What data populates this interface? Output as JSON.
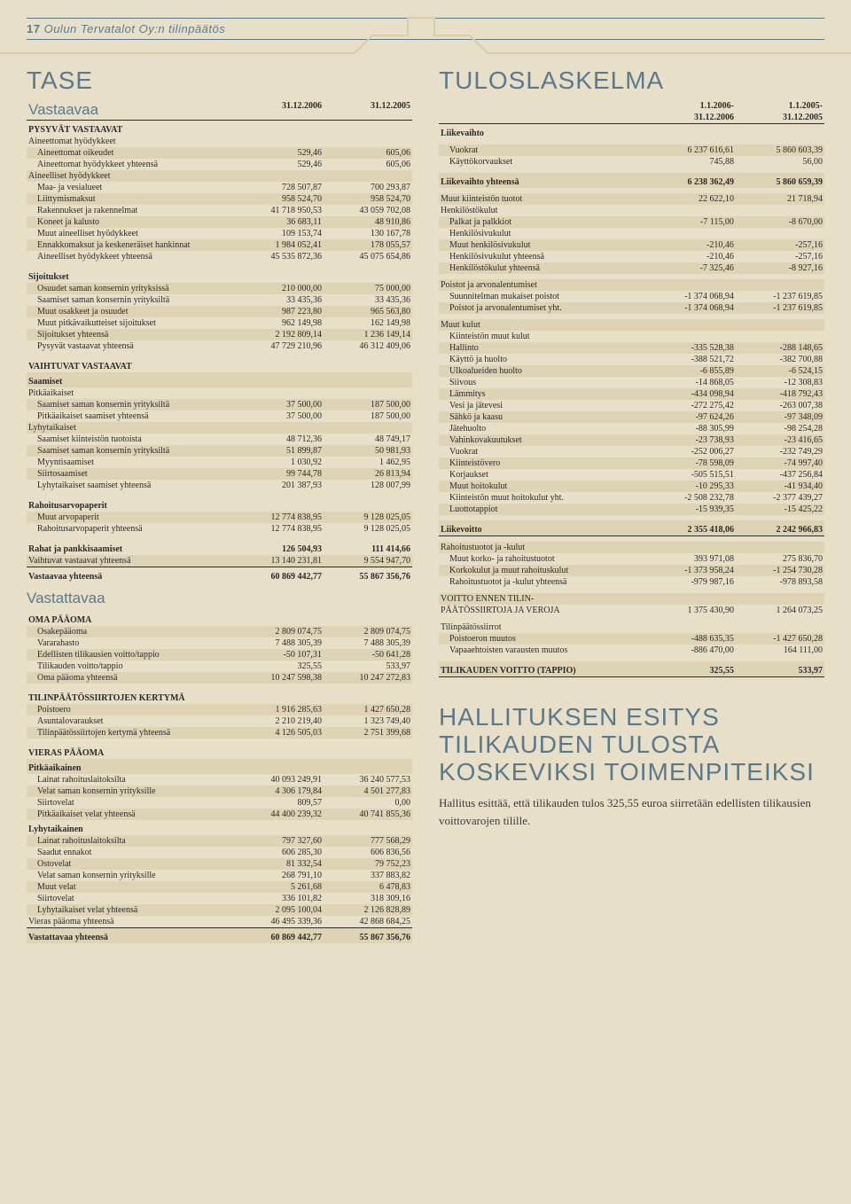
{
  "header": {
    "page_num": "17",
    "text": "Oulun Tervatalot Oy:n tilinpäätös"
  },
  "tase": {
    "title": "TASE",
    "vastaavaa_title": "Vastaavaa",
    "vastattavaa_title": "Vastattavaa",
    "date1": "31.12.2006",
    "date2": "31.12.2005",
    "rows_vastaavaa": [
      {
        "t": "section",
        "l": "PYSYVÄT VASTAAVAT"
      },
      {
        "t": "row",
        "l": "Aineettomat hyödykkeet"
      },
      {
        "t": "row",
        "band": 1,
        "indent": 1,
        "l": "Aineettomat oikeudet",
        "a": "529,46",
        "b": "605,06"
      },
      {
        "t": "row",
        "indent": 1,
        "l": "Aineettomat hyödykkeet yhteensä",
        "a": "529,46",
        "b": "605,06"
      },
      {
        "t": "row",
        "band": 1,
        "l": "Aineelliset hyödykkeet"
      },
      {
        "t": "row",
        "indent": 1,
        "l": "Maa- ja vesialueet",
        "a": "728 507,87",
        "b": "700 293,87"
      },
      {
        "t": "row",
        "band": 1,
        "indent": 1,
        "l": "Liittymismaksut",
        "a": "958 524,70",
        "b": "958 524,70"
      },
      {
        "t": "row",
        "indent": 1,
        "l": "Rakennukset ja rakennelmat",
        "a": "41 718 950,53",
        "b": "43 059 702,08"
      },
      {
        "t": "row",
        "band": 1,
        "indent": 1,
        "l": "Koneet ja kalusto",
        "a": "36 683,11",
        "b": "48 910,86"
      },
      {
        "t": "row",
        "indent": 1,
        "l": "Muut aineelliset hyödykkeet",
        "a": "109 153,74",
        "b": "130 167,78"
      },
      {
        "t": "row",
        "band": 1,
        "indent": 1,
        "l": "Ennakkomaksut ja keskeneräiset hankinnat",
        "a": "1 984 052,41",
        "b": "178 055,57"
      },
      {
        "t": "row",
        "indent": 1,
        "l": "Aineelliset hyödykkeet yhteensä",
        "a": "45 535 872,36",
        "b": "45 075 654,86"
      },
      {
        "t": "gap"
      },
      {
        "t": "section",
        "l": "Sijoitukset"
      },
      {
        "t": "row",
        "band": 1,
        "indent": 1,
        "l": "Osuudet saman konsernin yrityksissä",
        "a": "210 000,00",
        "b": "75 000,00"
      },
      {
        "t": "row",
        "indent": 1,
        "l": "Saamiset saman konsernin yrityksiltä",
        "a": "33 435,36",
        "b": "33 435,36"
      },
      {
        "t": "row",
        "band": 1,
        "indent": 1,
        "l": "Muut osakkeet ja osuudet",
        "a": "987 223,80",
        "b": "965 563,80"
      },
      {
        "t": "row",
        "indent": 1,
        "l": "Muut pitkävaikutteiset sijoitukset",
        "a": "962 149,98",
        "b": "162 149,98"
      },
      {
        "t": "row",
        "band": 1,
        "indent": 1,
        "l": "Sijoitukset yhteensä",
        "a": "2 192 809,14",
        "b": "1 236 149,14"
      },
      {
        "t": "row",
        "indent": 1,
        "l": "Pysyvät vastaavat yhteensä",
        "a": "47 729 210,96",
        "b": "46 312 409,06"
      },
      {
        "t": "gap"
      },
      {
        "t": "section",
        "l": "VAIHTUVAT VASTAAVAT"
      },
      {
        "t": "section",
        "band": 1,
        "l": "Saamiset"
      },
      {
        "t": "row",
        "l": "Pitkäaikaiset"
      },
      {
        "t": "row",
        "band": 1,
        "indent": 1,
        "l": "Saamiset saman konsernin yrityksiltä",
        "a": "37 500,00",
        "b": "187 500,00"
      },
      {
        "t": "row",
        "indent": 1,
        "l": "Pitkäaikaiset saamiset yhteensä",
        "a": "37 500,00",
        "b": "187 500,00"
      },
      {
        "t": "row",
        "band": 1,
        "l": "Lyhytaikaiset"
      },
      {
        "t": "row",
        "indent": 1,
        "l": "Saamiset kiinteistön tuotoista",
        "a": "48 712,36",
        "b": "48 749,17"
      },
      {
        "t": "row",
        "band": 1,
        "indent": 1,
        "l": "Saamiset saman konsernin yrityksiltä",
        "a": "51 899,87",
        "b": "50 981,93"
      },
      {
        "t": "row",
        "indent": 1,
        "l": "Myyntisaamiset",
        "a": "1 030,92",
        "b": "1 462,95"
      },
      {
        "t": "row",
        "band": 1,
        "indent": 1,
        "l": "Siirtosaamiset",
        "a": "99 744,78",
        "b": "26 813,94"
      },
      {
        "t": "row",
        "indent": 1,
        "l": "Lyhytaikaiset saamiset yhteensä",
        "a": "201 387,93",
        "b": "128 007,99"
      },
      {
        "t": "gap"
      },
      {
        "t": "section",
        "l": "Rahoitusarvopaperit"
      },
      {
        "t": "row",
        "band": 1,
        "indent": 1,
        "l": "Muut arvopaperit",
        "a": "12 774 838,95",
        "b": "9 128 025,05"
      },
      {
        "t": "row",
        "indent": 1,
        "l": "Rahoitusarvopaperit yhteensä",
        "a": "12 774 838,95",
        "b": "9 128 025,05"
      },
      {
        "t": "gap"
      },
      {
        "t": "section",
        "l": "Rahat ja pankkisaamiset",
        "a": "126 504,93",
        "b": "111 414,66"
      },
      {
        "t": "row",
        "band": 1,
        "uline": 1,
        "l": "Vaihtuvat vastaavat yhteensä",
        "a": "13 140 231,81",
        "b": "9 554 947,70"
      },
      {
        "t": "section",
        "l": "Vastaavaa yhteensä",
        "a": "60 869 442,77",
        "b": "55 867 356,76"
      }
    ],
    "rows_vastattavaa": [
      {
        "t": "section",
        "l": "OMA PÄÄOMA"
      },
      {
        "t": "row",
        "band": 1,
        "indent": 1,
        "l": "Osakepääoma",
        "a": "2 809 074,75",
        "b": "2 809 074,75"
      },
      {
        "t": "row",
        "indent": 1,
        "l": "Vararahasto",
        "a": "7 488 305,39",
        "b": "7 488 305,39"
      },
      {
        "t": "row",
        "band": 1,
        "indent": 1,
        "l": "Edellisten tilikausien voitto/tappio",
        "a": "-50 107,31",
        "b": "-50 641,28"
      },
      {
        "t": "row",
        "indent": 1,
        "l": "Tilikauden voitto/tappio",
        "a": "325,55",
        "b": "533,97"
      },
      {
        "t": "row",
        "band": 1,
        "indent": 1,
        "l": "Oma pääoma yhteensä",
        "a": "10 247 598,38",
        "b": "10 247 272,83"
      },
      {
        "t": "gap"
      },
      {
        "t": "section",
        "l": "TILINPÄÄTÖSSIIRTOJEN KERTYMÄ"
      },
      {
        "t": "row",
        "band": 1,
        "indent": 1,
        "l": "Poistoero",
        "a": "1 916 285,63",
        "b": "1 427 650,28"
      },
      {
        "t": "row",
        "indent": 1,
        "l": "Asuntalovaraukset",
        "a": "2 210 219,40",
        "b": "1 323 749,40"
      },
      {
        "t": "row",
        "band": 1,
        "indent": 1,
        "l": "Tilinpäätössiirtojen kertymä yhteensä",
        "a": "4 126 505,03",
        "b": "2 751 399,68"
      },
      {
        "t": "gap"
      },
      {
        "t": "section",
        "l": "VIERAS PÄÄOMA"
      },
      {
        "t": "section",
        "band": 1,
        "l": "Pitkäaikainen"
      },
      {
        "t": "row",
        "indent": 1,
        "l": "Lainat rahoituslaitoksilta",
        "a": "40 093 249,91",
        "b": "36 240 577,53"
      },
      {
        "t": "row",
        "band": 1,
        "indent": 1,
        "l": "Velat saman konsernin yrityksille",
        "a": "4 306 179,84",
        "b": "4 501 277,83"
      },
      {
        "t": "row",
        "indent": 1,
        "l": "Siirtovelat",
        "a": "809,57",
        "b": "0,00"
      },
      {
        "t": "row",
        "band": 1,
        "indent": 1,
        "l": "Pitkäaikaiset velat yhteensä",
        "a": "44 400 239,32",
        "b": "40 741 855,36"
      },
      {
        "t": "section",
        "l": "Lyhytaikainen"
      },
      {
        "t": "row",
        "band": 1,
        "indent": 1,
        "l": "Lainat rahoituslaitoksilta",
        "a": "797 327,60",
        "b": "777 568,29"
      },
      {
        "t": "row",
        "indent": 1,
        "l": "Saadut ennakot",
        "a": "606 285,30",
        "b": "606 836,56"
      },
      {
        "t": "row",
        "band": 1,
        "indent": 1,
        "l": "Ostovelat",
        "a": "81 332,54",
        "b": "79 752,23"
      },
      {
        "t": "row",
        "indent": 1,
        "l": "Velat saman konsernin yrityksille",
        "a": "268 791,10",
        "b": "337 883,82"
      },
      {
        "t": "row",
        "band": 1,
        "indent": 1,
        "l": "Muut velat",
        "a": "5 261,68",
        "b": "6 478,83"
      },
      {
        "t": "row",
        "indent": 1,
        "l": "Siirtovelat",
        "a": "336 101,82",
        "b": "318 309,16"
      },
      {
        "t": "row",
        "band": 1,
        "indent": 1,
        "l": "Lyhytaikaiset velat yhteensä",
        "a": "2 095 100,04",
        "b": "2 126 828,89"
      },
      {
        "t": "row",
        "uline": 1,
        "l": "Vieras pääoma yhteensä",
        "a": "46 495 339,36",
        "b": "42 868 684,25"
      },
      {
        "t": "section",
        "band": 1,
        "l": "Vastattavaa yhteensä",
        "a": "60 869 442,77",
        "b": "55 867 356,76"
      }
    ]
  },
  "tulos": {
    "title": "TULOSLASKELMA",
    "h1a": "1.1.2006-",
    "h1b": "31.12.2006",
    "h2a": "1.1.2005-",
    "h2b": "31.12.2005",
    "rows": [
      {
        "t": "section",
        "l": "Liikevaihto"
      },
      {
        "t": "gap"
      },
      {
        "t": "row",
        "band": 1,
        "indent": 1,
        "l": "Vuokrat",
        "a": "6 237 616,61",
        "b": "5 860 603,39"
      },
      {
        "t": "row",
        "indent": 1,
        "l": "Käyttökorvaukset",
        "a": "745,88",
        "b": "56,00"
      },
      {
        "t": "gap"
      },
      {
        "t": "section",
        "band": 1,
        "l": "Liikevaihto yhteensä",
        "a": "6 238 362,49",
        "b": "5 860 659,39"
      },
      {
        "t": "gap"
      },
      {
        "t": "row",
        "band": 1,
        "l": "Muut kiinteistön tuotot",
        "a": "22 622,10",
        "b": "21 718,94"
      },
      {
        "t": "row",
        "l": "Henkilöstökulut"
      },
      {
        "t": "row",
        "band": 1,
        "indent": 1,
        "l": "Palkat ja palkkiot",
        "a": "-7 115,00",
        "b": "-8 670,00"
      },
      {
        "t": "row",
        "indent": 1,
        "l": "Henkilösivukulut"
      },
      {
        "t": "row",
        "band": 1,
        "indent": 1,
        "l": "Muut henkilösivukulut",
        "a": "-210,46",
        "b": "-257,16"
      },
      {
        "t": "row",
        "indent": 1,
        "l": "Henkilösivukulut yhteensä",
        "a": "-210,46",
        "b": "-257,16"
      },
      {
        "t": "row",
        "band": 1,
        "indent": 1,
        "l": "Henkilöstökulut yhteensä",
        "a": "-7 325,46",
        "b": "-8 927,16"
      },
      {
        "t": "gap"
      },
      {
        "t": "row",
        "band": 1,
        "l": "Poistot ja arvonalentumiset"
      },
      {
        "t": "row",
        "indent": 1,
        "l": "Suunnitelman mukaiset poistot",
        "a": "-1 374 068,94",
        "b": "-1 237 619,85"
      },
      {
        "t": "row",
        "band": 1,
        "indent": 1,
        "l": "Poistot ja arvonalentumiset yht.",
        "a": "-1 374 068,94",
        "b": "-1 237 619,85"
      },
      {
        "t": "gap"
      },
      {
        "t": "row",
        "band": 1,
        "l": "Muut kulut"
      },
      {
        "t": "row",
        "indent": 1,
        "l": "Kiinteistön muut kulut"
      },
      {
        "t": "row",
        "band": 1,
        "indent": 1,
        "l": "Hallinto",
        "a": "-335 528,38",
        "b": "-288 148,65"
      },
      {
        "t": "row",
        "indent": 1,
        "l": "Käyttö ja huolto",
        "a": "-388 521,72",
        "b": "-382 700,88"
      },
      {
        "t": "row",
        "band": 1,
        "indent": 1,
        "l": "Ulkoalueiden huolto",
        "a": "-6 855,89",
        "b": "-6 524,15"
      },
      {
        "t": "row",
        "indent": 1,
        "l": "Siivous",
        "a": "-14 868,05",
        "b": "-12 308,83"
      },
      {
        "t": "row",
        "band": 1,
        "indent": 1,
        "l": "Lämmitys",
        "a": "-434 098,94",
        "b": "-418 792,43"
      },
      {
        "t": "row",
        "indent": 1,
        "l": "Vesi ja jätevesi",
        "a": "-272 275,42",
        "b": "-263 007,38"
      },
      {
        "t": "row",
        "band": 1,
        "indent": 1,
        "l": "Sähkö ja kaasu",
        "a": "-97 624,26",
        "b": "-97 348,09"
      },
      {
        "t": "row",
        "indent": 1,
        "l": "Jätehuolto",
        "a": "-88 305,99",
        "b": "-98 254,28"
      },
      {
        "t": "row",
        "band": 1,
        "indent": 1,
        "l": "Vahinkovakuutukset",
        "a": "-23 738,93",
        "b": "-23 416,65"
      },
      {
        "t": "row",
        "indent": 1,
        "l": "Vuokrat",
        "a": "-252 006,27",
        "b": "-232 749,29"
      },
      {
        "t": "row",
        "band": 1,
        "indent": 1,
        "l": "Kiinteistövero",
        "a": "-78 598,09",
        "b": "-74 997,40"
      },
      {
        "t": "row",
        "indent": 1,
        "l": "Korjaukset",
        "a": "-505 515,51",
        "b": "-437 256,84"
      },
      {
        "t": "row",
        "band": 1,
        "indent": 1,
        "l": "Muut hoitokulut",
        "a": "-10 295,33",
        "b": "-41 934,40"
      },
      {
        "t": "row",
        "indent": 1,
        "l": "Kiinteistön muut hoitokulut yht.",
        "a": "-2 508 232,78",
        "b": "-2 377 439,27"
      },
      {
        "t": "row",
        "band": 1,
        "indent": 1,
        "l": "Luottotappiot",
        "a": "-15 939,35",
        "b": "-15 425,22"
      },
      {
        "t": "gap"
      },
      {
        "t": "section",
        "band": 1,
        "uline": 1,
        "l": "Liikevoitto",
        "a": "2 355 418,06",
        "b": "2 242 966,83"
      },
      {
        "t": "gap"
      },
      {
        "t": "row",
        "band": 1,
        "l": "Rahoitustuotot ja -kulut"
      },
      {
        "t": "row",
        "indent": 1,
        "l": "Muut korko- ja rahoitustuotot",
        "a": "393 971,08",
        "b": "275 836,70"
      },
      {
        "t": "row",
        "band": 1,
        "indent": 1,
        "l": "Korkokulut ja muut rahoituskulut",
        "a": "-1 373 958,24",
        "b": "-1 254 730,28"
      },
      {
        "t": "row",
        "indent": 1,
        "l": "Rahoitustuotot ja -kulut yhteensä",
        "a": "-979 987,16",
        "b": "-978 893,58"
      },
      {
        "t": "gap"
      },
      {
        "t": "row",
        "band": 1,
        "l": "VOITTO ENNEN TILIN-"
      },
      {
        "t": "row",
        "l": "PÄÄTÖSSIIRTOJA JA VEROJA",
        "a": "1 375 430,90",
        "b": "1 264 073,25"
      },
      {
        "t": "gap"
      },
      {
        "t": "row",
        "l": "Tilinpäätössiirrot"
      },
      {
        "t": "row",
        "band": 1,
        "indent": 1,
        "l": "Poistoeron muutos",
        "a": "-488 635,35",
        "b": "-1 427 650,28"
      },
      {
        "t": "row",
        "indent": 1,
        "l": "Vapaaehtoisten varausten muutos",
        "a": "-886 470,00",
        "b": "164 111,00"
      },
      {
        "t": "gap"
      },
      {
        "t": "section",
        "band": 1,
        "uline": 1,
        "l": "TILIKAUDEN VOITTO (TAPPIO)",
        "a": "325,55",
        "b": "533,97"
      }
    ]
  },
  "proposal": {
    "title": "HALLITUKSEN ESITYS TILIKAUDEN TULOSTA KOSKEVIKSI TOIMENPITEIKSI",
    "body": "Hallitus esittää, että tilikauden tulos 325,55 euroa siirretään edellisten tilikausien voittovarojen tilille."
  }
}
